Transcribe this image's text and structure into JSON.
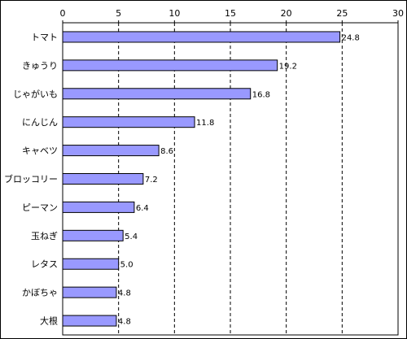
{
  "chart_data": {
    "type": "bar",
    "orientation": "horizontal",
    "title": "",
    "xlabel": "",
    "ylabel": "",
    "xlim": [
      0,
      30
    ],
    "x_ticks": [
      0,
      5,
      10,
      15,
      20,
      25,
      30
    ],
    "x_tick_labels": [
      "0",
      "5",
      "10",
      "15",
      "20",
      "25",
      "30"
    ],
    "x_axis_position": "top",
    "grid": "vertical dashed",
    "legend": "none",
    "categories": [
      "トマト",
      "きゅうり",
      "じゃがいも",
      "にんじん",
      "キャベツ",
      "ブロッコリー",
      "ピーマン",
      "玉ねぎ",
      "レタス",
      "かぼちゃ",
      "大根"
    ],
    "values": [
      24.8,
      19.2,
      16.8,
      11.8,
      8.6,
      7.2,
      6.4,
      5.4,
      5.0,
      4.8,
      4.8
    ],
    "value_labels": [
      "24.8",
      "19.2",
      "16.8",
      "11.8",
      "8.6",
      "7.2",
      "6.4",
      "5.4",
      "5.0",
      "4.8",
      "4.8"
    ],
    "colors": {
      "bar_fill": "#9999ff",
      "bar_stroke": "#000000",
      "grid": "#000000",
      "text": "#000000"
    }
  }
}
